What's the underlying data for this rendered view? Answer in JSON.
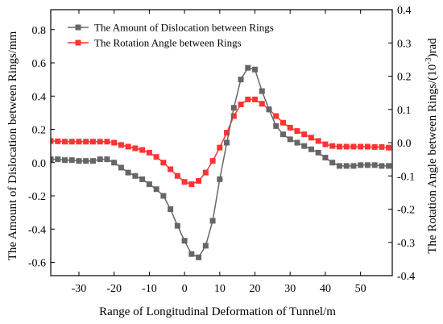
{
  "chart_data": {
    "type": "line",
    "xlabel": "Range of Longitudinal Deformation of Tunnel/m",
    "ylabel_left": "The Amount of Dislocation between Rings/mm",
    "ylabel_right_prefix": "The Rotation Angle between Rings/(10",
    "ylabel_right_sup": "-3",
    "ylabel_right_suffix": ")rad",
    "xlim": [
      -38,
      59
    ],
    "ylim_left": [
      -0.68,
      0.92
    ],
    "ylim_right": [
      -0.4,
      0.4
    ],
    "xticks": [
      -30,
      -20,
      -10,
      0,
      10,
      20,
      30,
      40,
      50
    ],
    "xtick_labels": [
      "-30",
      "-20",
      "-10",
      "0",
      "10",
      "20",
      "30",
      "40",
      "50"
    ],
    "yticks_left": [
      -0.6,
      -0.4,
      -0.2,
      0.0,
      0.2,
      0.4,
      0.6,
      0.8
    ],
    "ytick_labels_left": [
      "-0.6",
      "-0.4",
      "-0.2",
      "0.0",
      "0.2",
      "0.4",
      "0.6",
      "0.8"
    ],
    "yticks_right": [
      -0.4,
      -0.3,
      -0.2,
      -0.1,
      0.0,
      0.1,
      0.2,
      0.3,
      0.4
    ],
    "ytick_labels_right": [
      "-0.4",
      "-0.3",
      "-0.2",
      "-0.1",
      "0.0",
      "0.1",
      "0.2",
      "0.3",
      "0.4"
    ],
    "grid": false,
    "legend_position": "top-left",
    "series": [
      {
        "name": "The Amount of Dislocation between Rings",
        "axis": "left",
        "color": "#666666",
        "marker": "square",
        "x": [
          -38,
          -36,
          -34,
          -32,
          -30,
          -28,
          -26,
          -24,
          -22,
          -20,
          -18,
          -16,
          -14,
          -12,
          -10,
          -8,
          -6,
          -4,
          -2,
          0,
          2,
          4,
          6,
          8,
          10,
          12,
          14,
          16,
          18,
          20,
          22,
          24,
          26,
          28,
          30,
          32,
          34,
          36,
          38,
          40,
          42,
          44,
          46,
          48,
          50,
          52,
          54,
          56,
          58
        ],
        "values": [
          0.02,
          0.02,
          0.015,
          0.015,
          0.01,
          0.01,
          0.01,
          0.02,
          0.02,
          0.0,
          -0.03,
          -0.06,
          -0.08,
          -0.1,
          -0.13,
          -0.16,
          -0.2,
          -0.28,
          -0.38,
          -0.47,
          -0.55,
          -0.57,
          -0.5,
          -0.35,
          -0.1,
          0.12,
          0.33,
          0.5,
          0.57,
          0.56,
          0.43,
          0.32,
          0.22,
          0.17,
          0.14,
          0.12,
          0.1,
          0.08,
          0.06,
          0.03,
          0.0,
          -0.02,
          -0.02,
          -0.02,
          -0.015,
          -0.015,
          -0.015,
          -0.02,
          -0.02
        ]
      },
      {
        "name": "The Rotation Angle between Rings",
        "axis": "right",
        "color": "#ff3333",
        "marker": "square",
        "x": [
          -38,
          -36,
          -34,
          -32,
          -30,
          -28,
          -26,
          -24,
          -22,
          -20,
          -18,
          -16,
          -14,
          -12,
          -10,
          -8,
          -6,
          -4,
          -2,
          0,
          2,
          4,
          6,
          8,
          10,
          12,
          14,
          16,
          18,
          20,
          22,
          24,
          26,
          28,
          30,
          32,
          34,
          36,
          38,
          40,
          42,
          44,
          46,
          48,
          50,
          52,
          54,
          56,
          58
        ],
        "values": [
          0.005,
          0.004,
          0.003,
          0.003,
          0.003,
          0.003,
          0.003,
          0.003,
          0.003,
          0.0,
          -0.007,
          -0.012,
          -0.017,
          -0.022,
          -0.03,
          -0.043,
          -0.06,
          -0.08,
          -0.1,
          -0.118,
          -0.125,
          -0.115,
          -0.09,
          -0.055,
          -0.015,
          0.03,
          0.08,
          0.115,
          0.13,
          0.13,
          0.117,
          0.1,
          0.08,
          0.06,
          0.045,
          0.035,
          0.025,
          0.015,
          0.005,
          -0.005,
          -0.01,
          -0.012,
          -0.012,
          -0.012,
          -0.012,
          -0.012,
          -0.013,
          -0.013,
          -0.015
        ]
      }
    ]
  }
}
